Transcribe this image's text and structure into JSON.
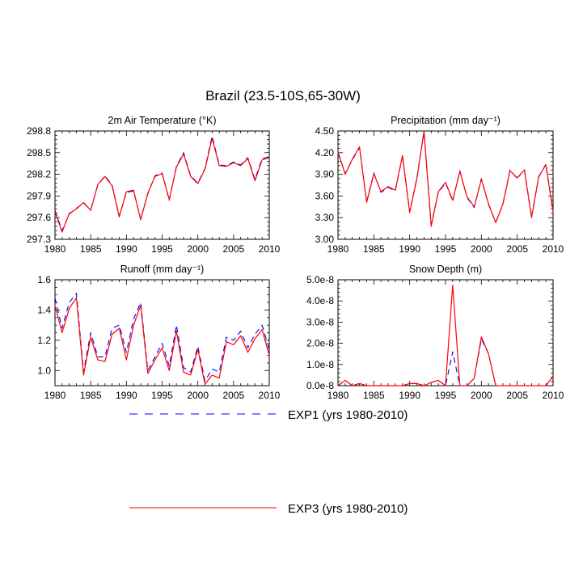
{
  "title": "Brazil (23.5-10S,65-30W)",
  "legend": [
    {
      "label": "EXP1 (yrs 1980-2010)",
      "color": "#0000ff",
      "dash": "dashed"
    },
    {
      "label": "EXP3 (yrs 1980-2010)",
      "color": "#ff0000",
      "dash": "solid"
    }
  ],
  "chart_data": [
    {
      "type": "line",
      "title": "2m Air Temperature (°K)",
      "xlim": [
        1980,
        2010
      ],
      "ylim": [
        297.3,
        298.8
      ],
      "xticks": [
        "1980",
        "1985",
        "1990",
        "1995",
        "2000",
        "2005",
        "2010"
      ],
      "yticks": [
        "297.3",
        "297.6",
        "297.9",
        "298.2",
        "298.5",
        "298.8"
      ],
      "x": [
        1980,
        1981,
        1982,
        1983,
        1984,
        1985,
        1986,
        1987,
        1988,
        1989,
        1990,
        1991,
        1992,
        1993,
        1994,
        1995,
        1996,
        1997,
        1998,
        1999,
        2000,
        2001,
        2002,
        2003,
        2004,
        2005,
        2006,
        2007,
        2008,
        2009,
        2010
      ],
      "series": [
        {
          "name": "EXP1 (yrs 1980-2010)",
          "values": [
            297.7,
            297.42,
            297.65,
            297.73,
            297.8,
            297.71,
            298.05,
            298.18,
            298.05,
            297.62,
            297.95,
            297.97,
            297.58,
            297.93,
            298.18,
            298.22,
            297.84,
            298.31,
            298.5,
            298.18,
            298.08,
            298.28,
            298.73,
            298.33,
            298.32,
            298.37,
            298.33,
            298.43,
            298.13,
            298.42,
            298.44
          ]
        },
        {
          "name": "EXP3 (yrs 1980-2010)",
          "values": [
            297.68,
            297.4,
            297.66,
            297.72,
            297.81,
            297.7,
            298.06,
            298.17,
            298.04,
            297.61,
            297.96,
            297.98,
            297.57,
            297.94,
            298.17,
            298.21,
            297.85,
            298.3,
            298.48,
            298.17,
            298.07,
            298.27,
            298.7,
            298.32,
            298.31,
            298.36,
            298.32,
            298.42,
            298.11,
            298.4,
            298.43
          ]
        }
      ]
    },
    {
      "type": "line",
      "title": "Precipitation (mm day⁻¹)",
      "xlim": [
        1980,
        2010
      ],
      "ylim": [
        3.0,
        4.5
      ],
      "xticks": [
        "1980",
        "1985",
        "1990",
        "1995",
        "2000",
        "2005",
        "2010"
      ],
      "yticks": [
        "3.00",
        "3.30",
        "3.60",
        "3.90",
        "4.20",
        "4.50"
      ],
      "x": [
        1980,
        1981,
        1982,
        1983,
        1984,
        1985,
        1986,
        1987,
        1988,
        1989,
        1990,
        1991,
        1992,
        1993,
        1994,
        1995,
        1996,
        1997,
        1998,
        1999,
        2000,
        2001,
        2002,
        2003,
        2004,
        2005,
        2006,
        2007,
        2008,
        2009,
        2010
      ],
      "series": [
        {
          "name": "EXP1 (yrs 1980-2010)",
          "values": [
            4.2,
            3.91,
            4.1,
            4.27,
            3.52,
            3.92,
            3.65,
            3.72,
            3.67,
            4.15,
            3.38,
            3.85,
            4.48,
            3.2,
            3.65,
            3.78,
            3.53,
            3.95,
            3.58,
            3.44,
            3.84,
            3.48,
            3.24,
            3.48,
            3.96,
            3.84,
            3.97,
            3.31,
            3.86,
            4.04,
            3.4
          ]
        },
        {
          "name": "EXP3 (yrs 1980-2010)",
          "values": [
            4.21,
            3.9,
            4.11,
            4.28,
            3.51,
            3.91,
            3.66,
            3.73,
            3.68,
            4.16,
            3.37,
            3.84,
            4.5,
            3.18,
            3.66,
            3.79,
            3.54,
            3.94,
            3.59,
            3.45,
            3.83,
            3.49,
            3.23,
            3.49,
            3.95,
            3.85,
            3.96,
            3.3,
            3.87,
            4.03,
            3.38
          ]
        }
      ]
    },
    {
      "type": "line",
      "title": "Runoff (mm day⁻¹)",
      "xlim": [
        1980,
        2010
      ],
      "ylim": [
        0.9,
        1.6
      ],
      "xticks": [
        "1980",
        "1985",
        "1990",
        "1995",
        "2000",
        "2005",
        "2010"
      ],
      "yticks": [
        "1.0",
        "1.2",
        "1.4",
        "1.6"
      ],
      "x": [
        1980,
        1981,
        1982,
        1983,
        1984,
        1985,
        1986,
        1987,
        1988,
        1989,
        1990,
        1991,
        1992,
        1993,
        1994,
        1995,
        1996,
        1997,
        1998,
        1999,
        2000,
        2001,
        2002,
        2003,
        2004,
        2005,
        2006,
        2007,
        2008,
        2009,
        2010
      ],
      "series": [
        {
          "name": "EXP1 (yrs 1980-2010)",
          "values": [
            1.48,
            1.28,
            1.45,
            1.51,
            0.99,
            1.25,
            1.09,
            1.09,
            1.28,
            1.3,
            1.12,
            1.34,
            1.45,
            1.0,
            1.09,
            1.18,
            1.03,
            1.3,
            1.02,
            0.99,
            1.16,
            0.93,
            1.01,
            0.99,
            1.22,
            1.2,
            1.26,
            1.15,
            1.24,
            1.3,
            1.14
          ]
        },
        {
          "name": "EXP3 (yrs 1980-2010)",
          "values": [
            1.43,
            1.25,
            1.41,
            1.48,
            0.97,
            1.22,
            1.07,
            1.06,
            1.24,
            1.28,
            1.07,
            1.3,
            1.43,
            0.98,
            1.07,
            1.15,
            1.0,
            1.26,
            0.99,
            0.97,
            1.14,
            0.91,
            0.97,
            0.95,
            1.19,
            1.17,
            1.23,
            1.12,
            1.21,
            1.27,
            1.1
          ]
        }
      ]
    },
    {
      "type": "line",
      "title": "Snow Depth (m)",
      "xlim": [
        1980,
        2010
      ],
      "ylim": [
        0,
        5e-08
      ],
      "xticks": [
        "1980",
        "1985",
        "1990",
        "1995",
        "2000",
        "2005",
        "2010"
      ],
      "yticks": [
        "0.0e-8",
        "1.0e-8",
        "2.0e-8",
        "3.0e-8",
        "4.0e-8",
        "5.0e-8"
      ],
      "x": [
        1980,
        1981,
        1982,
        1983,
        1984,
        1985,
        1986,
        1987,
        1988,
        1989,
        1990,
        1991,
        1992,
        1993,
        1994,
        1995,
        1996,
        1997,
        1998,
        1999,
        2000,
        2001,
        2002,
        2003,
        2004,
        2005,
        2006,
        2007,
        2008,
        2009,
        2010
      ],
      "series": [
        {
          "name": "EXP1 (yrs 1980-2010)",
          "values": [
            0,
            2.5e-09,
            0,
            1e-09,
            0,
            0,
            0,
            0,
            0,
            0,
            1e-09,
            1e-09,
            0,
            1.5e-09,
            2.5e-09,
            0,
            1.6e-08,
            0,
            0,
            3.5e-09,
            2.2e-08,
            1.5e-08,
            0,
            0,
            0,
            0,
            0,
            0,
            0,
            0,
            4.5e-09
          ]
        },
        {
          "name": "EXP3 (yrs 1980-2010)",
          "values": [
            0,
            2.5e-09,
            0,
            1e-09,
            0,
            0,
            0,
            0,
            0,
            0,
            1e-09,
            1e-09,
            0,
            1.5e-09,
            2.5e-09,
            0,
            4.75e-08,
            0,
            0,
            3.5e-09,
            2.3e-08,
            1.5e-08,
            0,
            0,
            0,
            0,
            0,
            0,
            0,
            0,
            4.5e-09
          ]
        }
      ]
    }
  ]
}
